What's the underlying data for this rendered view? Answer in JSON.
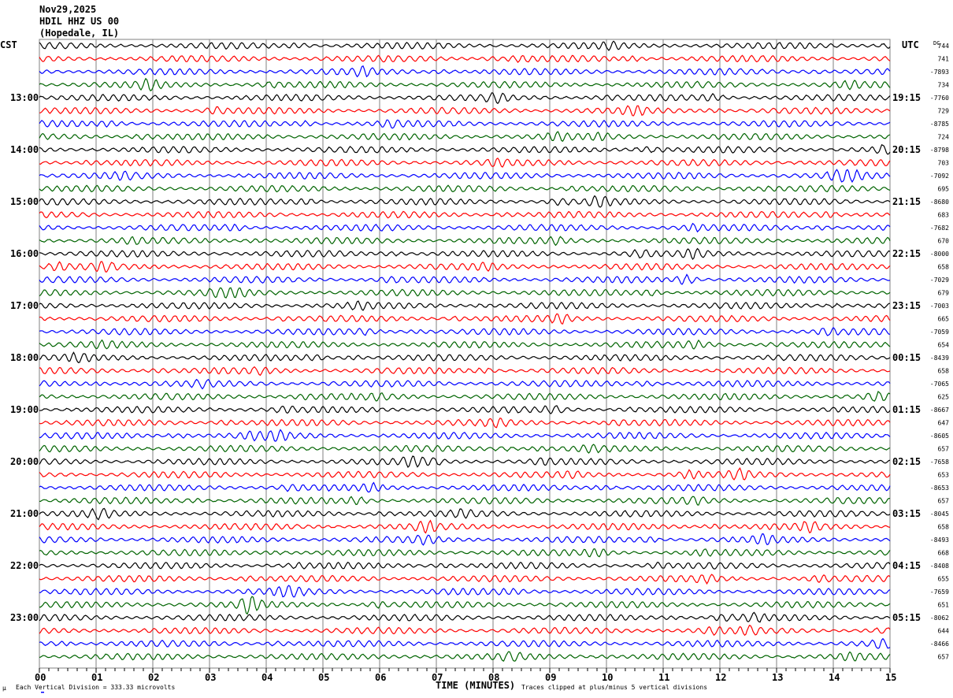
{
  "header": {
    "date": "Nov29,2025",
    "station": "HDIL HHZ US 00",
    "location": "(Hopedale, IL)"
  },
  "chart_data": {
    "type": "line",
    "title": "HDIL HHZ US 00 helicorder",
    "left_axis_label": "CST",
    "right_axis_label": "UTC",
    "dc_label": "DC",
    "xlabel": "TIME (MINUTES)",
    "xlim": [
      0,
      15
    ],
    "x_ticks": [
      "00",
      "01",
      "02",
      "03",
      "04",
      "05",
      "06",
      "07",
      "08",
      "09",
      "10",
      "11",
      "12",
      "13",
      "14",
      "15"
    ],
    "rows_per_hour": 4,
    "row_count": 48,
    "left_hour_labels": [
      "13:00",
      "14:00",
      "15:00",
      "16:00",
      "17:00",
      "18:00",
      "19:00",
      "20:00",
      "21:00",
      "22:00",
      "23:00"
    ],
    "right_hour_labels": [
      "19:15",
      "20:15",
      "21:15",
      "22:15",
      "23:15",
      "00:15",
      "01:15",
      "02:15",
      "03:15",
      "04:15",
      "05:15"
    ],
    "dc_offsets": [
      744,
      741,
      -7893,
      734,
      -7760,
      729,
      -8785,
      724,
      -8798,
      703,
      -7092,
      695,
      -8680,
      683,
      -7682,
      670,
      -8000,
      658,
      -7029,
      679,
      -7003,
      665,
      -7059,
      654,
      -8439,
      658,
      -7065,
      625,
      -8667,
      647,
      -8605,
      657,
      -7658,
      653,
      -8653,
      657,
      -8045,
      658,
      -8493,
      668,
      -8408,
      655,
      -7659,
      651,
      -8062,
      644,
      -8466,
      657
    ],
    "trace_colors": [
      "#000000",
      "#ff0000",
      "#0000ff",
      "#006400"
    ],
    "grid": true
  },
  "footer": {
    "scale_note": "Each Vertical Division =  333.33 microvolts",
    "clip_note": "Traces clipped at plus/minus 5 vertical divisions",
    "mu": "µ"
  }
}
